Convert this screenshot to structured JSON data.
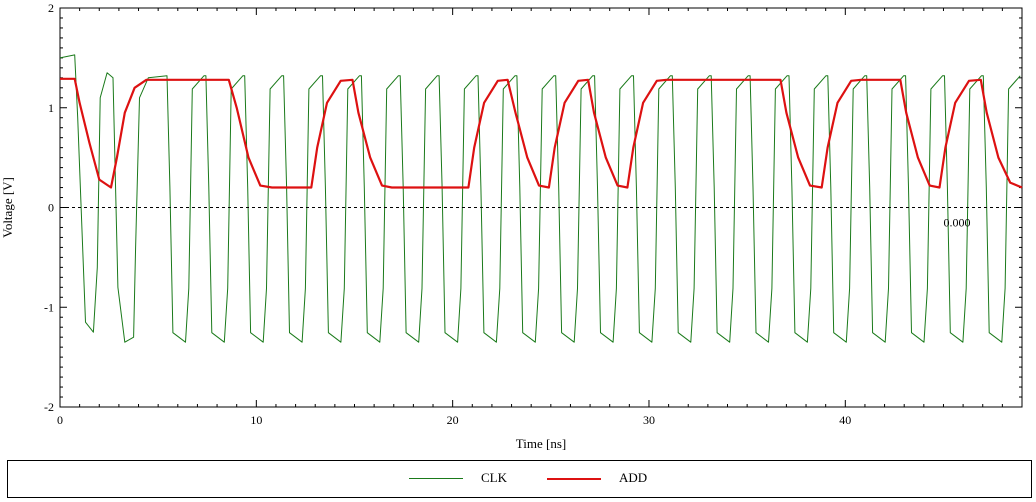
{
  "chart_data": {
    "type": "line",
    "title": "",
    "xlabel": "Time [ns]",
    "ylabel": "Voltage [V]",
    "xlim": [
      0,
      49
    ],
    "ylim": [
      -2,
      2
    ],
    "x_ticks": [
      0,
      10,
      20,
      30,
      40
    ],
    "y_ticks": [
      -2,
      -1,
      0,
      1,
      2
    ],
    "grid": false,
    "reference_line": {
      "y": 0,
      "style": "dashed",
      "label": "0.000"
    },
    "legend": {
      "position": "bottom",
      "entries": [
        "CLK",
        "ADD"
      ]
    },
    "series": [
      {
        "name": "CLK",
        "color": "#1a7a1a",
        "points": [
          [
            0,
            1.5
          ],
          [
            0.75,
            1.53
          ],
          [
            0.9,
            0.9
          ],
          [
            1.3,
            -1.15
          ],
          [
            1.7,
            -1.25
          ],
          [
            1.9,
            -0.6
          ],
          [
            2.05,
            1.1
          ],
          [
            2.4,
            1.35
          ],
          [
            2.7,
            1.3
          ],
          [
            2.95,
            -0.8
          ],
          [
            3.3,
            -1.35
          ],
          [
            3.75,
            -1.3
          ],
          [
            3.85,
            -0.4
          ],
          [
            4.05,
            1.1
          ],
          [
            4.5,
            1.3
          ]
        ],
        "periodic": {
          "start": 4.5,
          "end": 49,
          "period": 1.98,
          "high": 1.32,
          "low": -1.35,
          "edge": 0.3,
          "phase": 0.95
        }
      },
      {
        "name": "ADD",
        "color": "#dd1111",
        "points": [
          [
            0,
            1.29
          ],
          [
            0.75,
            1.29
          ],
          [
            1,
            1.05
          ],
          [
            1.5,
            0.65
          ],
          [
            2,
            0.28
          ],
          [
            2.6,
            0.2
          ],
          [
            2.9,
            0.5
          ],
          [
            3.3,
            0.95
          ],
          [
            3.8,
            1.2
          ],
          [
            4.4,
            1.28
          ],
          [
            8.6,
            1.28
          ],
          [
            9,
            1.0
          ],
          [
            9.6,
            0.5
          ],
          [
            10.2,
            0.22
          ],
          [
            10.8,
            0.2
          ],
          [
            12.8,
            0.2
          ],
          [
            13.1,
            0.6
          ],
          [
            13.6,
            1.05
          ],
          [
            14.3,
            1.27
          ],
          [
            14.9,
            1.28
          ],
          [
            15.2,
            0.95
          ],
          [
            15.8,
            0.5
          ],
          [
            16.4,
            0.22
          ],
          [
            16.9,
            0.2
          ],
          [
            20.8,
            0.2
          ],
          [
            21.1,
            0.6
          ],
          [
            21.6,
            1.05
          ],
          [
            22.3,
            1.27
          ],
          [
            22.8,
            1.28
          ],
          [
            23.2,
            0.95
          ],
          [
            23.8,
            0.5
          ],
          [
            24.4,
            0.22
          ],
          [
            24.9,
            0.2
          ],
          [
            25.2,
            0.6
          ],
          [
            25.7,
            1.05
          ],
          [
            26.4,
            1.27
          ],
          [
            26.9,
            1.28
          ],
          [
            27.2,
            0.95
          ],
          [
            27.8,
            0.5
          ],
          [
            28.4,
            0.22
          ],
          [
            28.9,
            0.2
          ],
          [
            29.2,
            0.6
          ],
          [
            29.7,
            1.05
          ],
          [
            30.4,
            1.27
          ],
          [
            30.9,
            1.28
          ],
          [
            36.7,
            1.28
          ],
          [
            37,
            0.95
          ],
          [
            37.6,
            0.5
          ],
          [
            38.2,
            0.22
          ],
          [
            38.8,
            0.2
          ],
          [
            39.1,
            0.6
          ],
          [
            39.6,
            1.05
          ],
          [
            40.3,
            1.27
          ],
          [
            40.8,
            1.28
          ],
          [
            42.8,
            1.28
          ],
          [
            43.1,
            0.95
          ],
          [
            43.7,
            0.5
          ],
          [
            44.3,
            0.22
          ],
          [
            44.8,
            0.2
          ],
          [
            45.1,
            0.6
          ],
          [
            45.6,
            1.05
          ],
          [
            46.3,
            1.27
          ],
          [
            46.9,
            1.28
          ],
          [
            47.2,
            0.95
          ],
          [
            47.8,
            0.5
          ],
          [
            48.4,
            0.25
          ],
          [
            49,
            0.2
          ]
        ]
      }
    ]
  }
}
